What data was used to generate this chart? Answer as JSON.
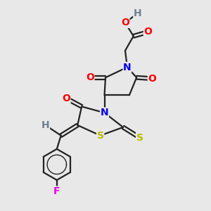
{
  "background_color": "#e8e8e8",
  "figsize": [
    3.0,
    3.0
  ],
  "dpi": 100,
  "xlim": [
    0,
    8
  ],
  "ylim": [
    0,
    10
  ]
}
